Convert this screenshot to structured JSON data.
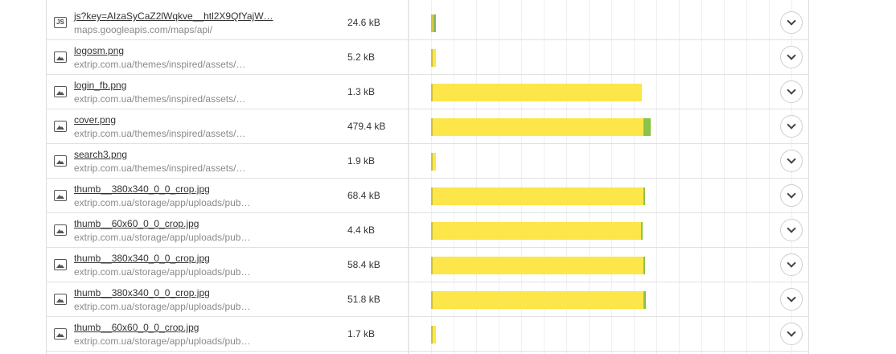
{
  "rows": [
    {
      "type": "js",
      "type_icon": "JS",
      "name": "js?key=AIzaSyCaZ2lWqkve__htl2X9QfYajW…",
      "path": "maps.googleapis.com/maps/api/",
      "size": "24.6 kB",
      "wait_ms": 1,
      "receive_ms": 2
    },
    {
      "type": "img",
      "name": "logosm.png",
      "path": "extrip.com.ua/themes/inspired/assets/…",
      "size": "5.2 kB",
      "wait_ms": 1,
      "receive_ms": 0
    },
    {
      "type": "img",
      "name": "login_fb.png",
      "path": "extrip.com.ua/themes/inspired/assets/…",
      "size": "1.3 kB",
      "wait_ms": 262,
      "receive_ms": 0
    },
    {
      "type": "img",
      "name": "cover.png",
      "path": "extrip.com.ua/themes/inspired/assets/…",
      "size": "479.4 kB",
      "wait_ms": 264,
      "receive_ms": 9
    },
    {
      "type": "img",
      "name": "search3.png",
      "path": "extrip.com.ua/themes/inspired/assets/…",
      "size": "1.9 kB",
      "wait_ms": 1,
      "receive_ms": 0
    },
    {
      "type": "img",
      "name": "thumb__380x340_0_0_crop.jpg",
      "path": "extrip.com.ua/storage/app/uploads/pub…",
      "size": "68.4 kB",
      "wait_ms": 264,
      "receive_ms": 2
    },
    {
      "type": "img",
      "name": "thumb__60x60_0_0_crop.jpg",
      "path": "extrip.com.ua/storage/app/uploads/pub…",
      "size": "4.4 kB",
      "wait_ms": 262,
      "receive_ms": 1
    },
    {
      "type": "img",
      "name": "thumb__380x340_0_0_crop.jpg",
      "path": "extrip.com.ua/storage/app/uploads/pub…",
      "size": "58.4 kB",
      "wait_ms": 264,
      "receive_ms": 2
    },
    {
      "type": "img",
      "name": "thumb__380x340_0_0_crop.jpg",
      "path": "extrip.com.ua/storage/app/uploads/pub…",
      "size": "51.8 kB",
      "wait_ms": 264,
      "receive_ms": 3
    },
    {
      "type": "img",
      "name": "thumb__60x60_0_0_crop.jpg",
      "path": "extrip.com.ua/storage/app/uploads/pub…",
      "size": "1.7 kB",
      "wait_ms": 1,
      "receive_ms": 0
    }
  ],
  "colors": {
    "wait": "#fce649",
    "receive": "#8bc34a",
    "js_extra": "#7986cb"
  }
}
